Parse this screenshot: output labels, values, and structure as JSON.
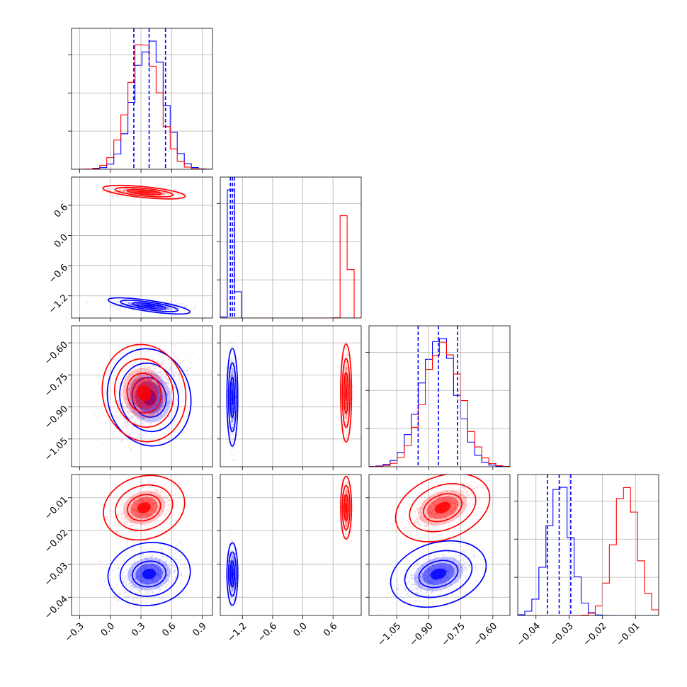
{
  "colors": {
    "blue": "#0000ff",
    "red": "#ff0000",
    "grid": "#b0b0b0"
  },
  "chart_data": {
    "type": "corner",
    "grid": true,
    "parameters": [
      {
        "range": [
          -0.38,
          1.0
        ],
        "ticks": [
          -0.3,
          0.0,
          0.3,
          0.6,
          0.9
        ],
        "tick_labels": [
          "−0.3",
          "0.0",
          "0.3",
          "0.6",
          "0.9"
        ]
      },
      {
        "range": [
          -1.64,
          1.16
        ],
        "ticks": [
          -1.2,
          -0.6,
          0.0,
          0.6
        ],
        "tick_labels": [
          "−1.2",
          "−0.6",
          "0.0",
          "0.6"
        ]
      },
      {
        "range": [
          -1.18,
          -0.52
        ],
        "ticks": [
          -1.05,
          -0.9,
          -0.75,
          -0.6
        ],
        "tick_labels": [
          "−1.05",
          "−0.90",
          "−0.75",
          "−0.60"
        ]
      },
      {
        "range": [
          -0.0455,
          -0.003
        ],
        "ticks": [
          -0.04,
          -0.03,
          -0.02,
          -0.01
        ],
        "tick_labels": [
          "−0.04",
          "−0.03",
          "−0.02",
          "−0.01"
        ]
      }
    ],
    "series": [
      {
        "color": "#0000ff",
        "mean": [
          0.38,
          -1.4,
          -0.855,
          -0.033
        ],
        "std": [
          0.15,
          0.04,
          0.085,
          0.0035
        ],
        "quantiles": [
          [
            0.23,
            0.38,
            0.54
          ],
          [
            -1.44,
            -1.4,
            -1.36
          ],
          [
            -0.95,
            -0.855,
            -0.765
          ],
          [
            -0.0365,
            -0.033,
            -0.0295
          ]
        ],
        "correlations": {
          "0-1": -0.3,
          "0-2": 0.5,
          "0-3": 0.3,
          "1-2": 0.0,
          "1-3": 0.0,
          "2-3": 0.6
        }
      },
      {
        "color": "#ff0000",
        "mean": [
          0.33,
          0.86,
          -0.835,
          -0.013
        ],
        "std": [
          0.15,
          0.04,
          0.085,
          0.0035
        ],
        "correlations": {
          "0-1": -0.2,
          "0-2": 0.5,
          "0-3": 0.6,
          "1-2": 0.0,
          "1-3": 0.0,
          "2-3": 0.75
        }
      }
    ]
  }
}
